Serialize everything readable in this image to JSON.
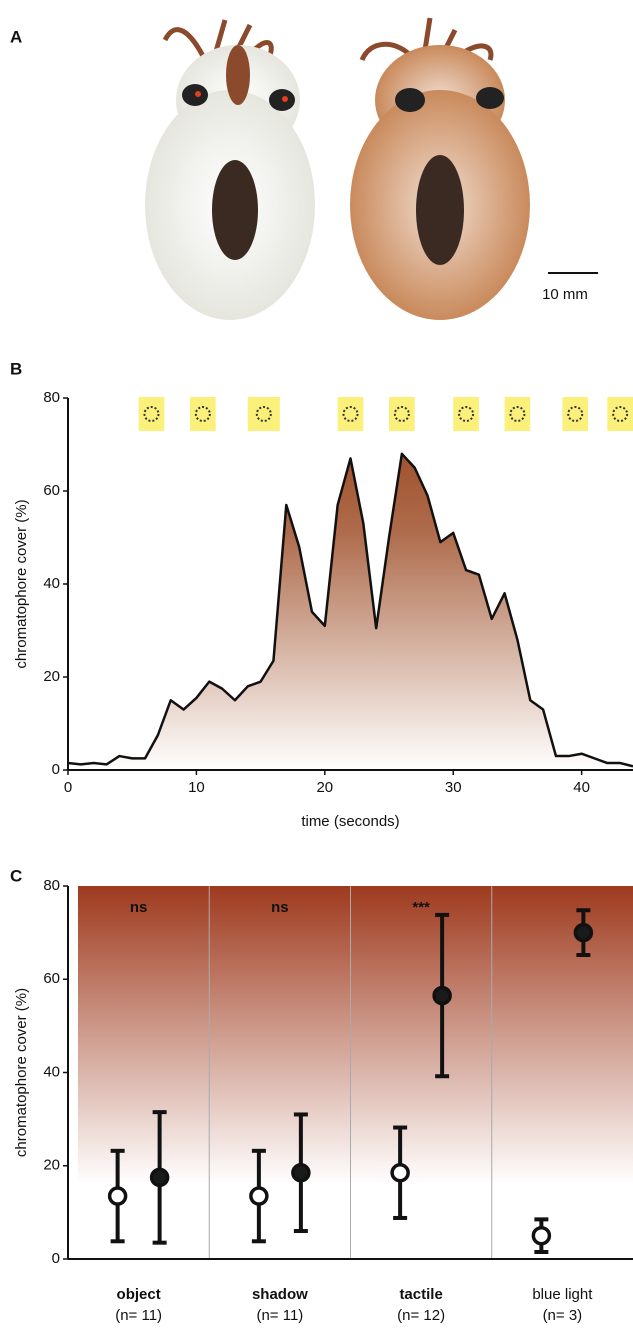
{
  "panel_a": {
    "label": "A",
    "scale_bar": "10 mm"
  },
  "chart_data": [
    {
      "type": "line",
      "panel_label": "B",
      "y_label": "chromatophore cover (%)",
      "x_label": "time (seconds)",
      "x": [
        0,
        1,
        2,
        3,
        4,
        5,
        6,
        7,
        8,
        9,
        10,
        11,
        12,
        13,
        14,
        15,
        16,
        17,
        18,
        19,
        20,
        21,
        22,
        23,
        24,
        25,
        26,
        27,
        28,
        29,
        30,
        31,
        32,
        33,
        34,
        35,
        36,
        37,
        38,
        39,
        40,
        41,
        42,
        43,
        44
      ],
      "values": [
        1.5,
        1.2,
        1.5,
        1.2,
        3,
        2.5,
        2.5,
        7.5,
        15,
        13,
        15.5,
        19,
        17.5,
        15,
        18,
        19,
        23.5,
        57,
        48,
        34,
        31,
        57,
        67,
        53,
        30.5,
        50,
        68,
        65,
        59,
        49,
        51,
        43,
        42,
        32.5,
        38,
        28,
        15,
        13,
        3,
        3,
        3.5,
        2.5,
        1.5,
        1.5,
        0.8
      ],
      "color": "#111111",
      "fill_color": "#a0522d",
      "light_pulses": [
        [
          5.5,
          7.5
        ],
        [
          9.5,
          11.5
        ],
        [
          14,
          16.5
        ],
        [
          21,
          23
        ],
        [
          25,
          27
        ],
        [
          30,
          32
        ],
        [
          34,
          36
        ],
        [
          38.5,
          40.5
        ],
        [
          42,
          44
        ]
      ],
      "pulse_color": "#fbf07a",
      "xlim": [
        0,
        44
      ],
      "xticks": [
        0,
        10,
        20,
        30,
        40
      ],
      "ylim": [
        0,
        80
      ],
      "yticks": [
        0,
        20,
        40,
        60,
        80
      ]
    },
    {
      "type": "errorbar",
      "panel_label": "C",
      "y_label": "chromatophore cover (%)",
      "categories": [
        "object",
        "shadow",
        "tactile",
        "blue light"
      ],
      "n_labels": [
        "(n= 11)",
        "(n= 11)",
        "(n= 12)",
        "(n= 3)"
      ],
      "annotations": [
        "ns",
        "ns",
        "***",
        null
      ],
      "series": [
        {
          "color": "#ffffff",
          "values": [
            13.5,
            13.5,
            18.5,
            5
          ],
          "errors": [
            9.7,
            9.7,
            9.7,
            3.5
          ]
        },
        {
          "color": "#1a1a1a",
          "values": [
            17.5,
            18.5,
            56.5,
            70
          ],
          "errors": [
            14,
            12.5,
            17.3,
            4.8
          ]
        }
      ],
      "background_color": "#9e3a1e",
      "ylim": [
        0,
        80
      ],
      "yticks": [
        0,
        20,
        40,
        60,
        80
      ]
    }
  ]
}
